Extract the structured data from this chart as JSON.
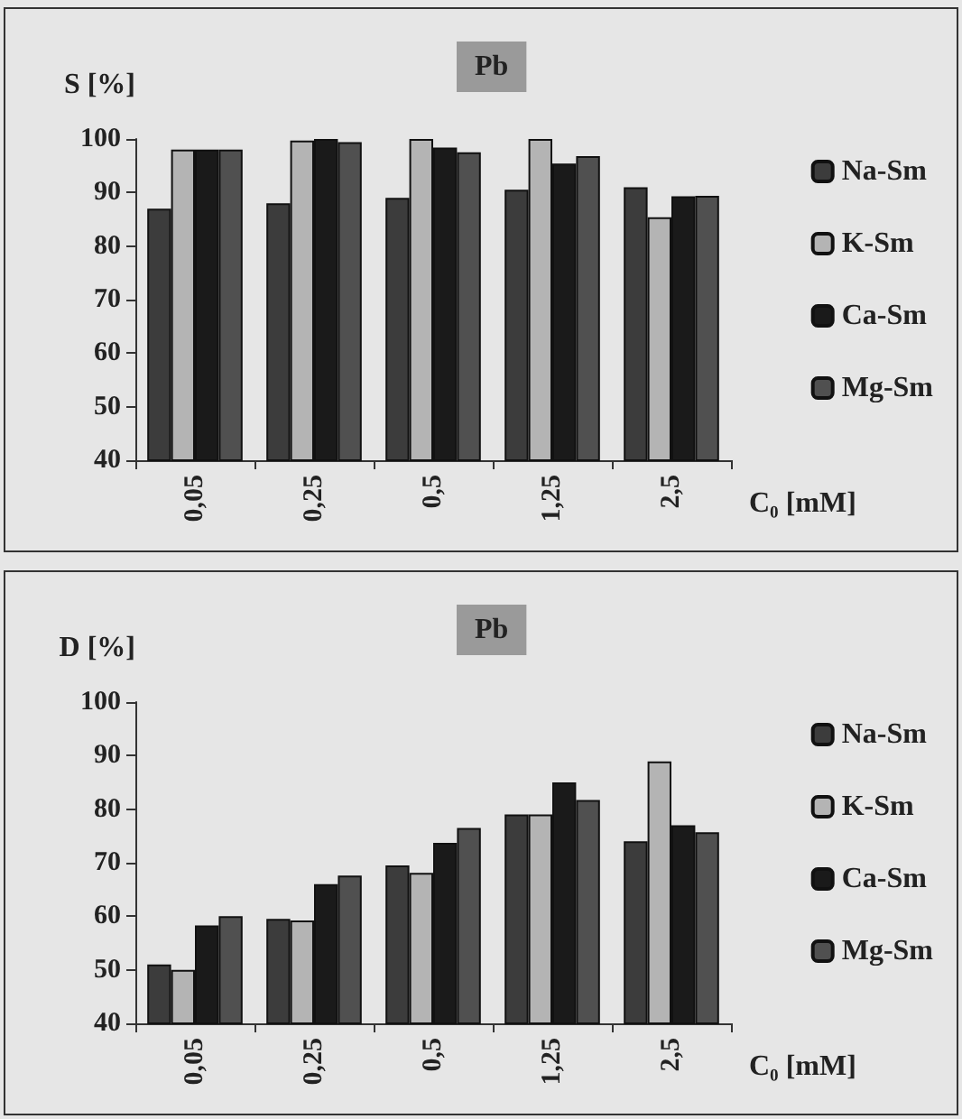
{
  "chart_data": [
    {
      "type": "bar",
      "title": "Pb",
      "ylabel": "S [%]",
      "xlabel": "C₀ [mM]",
      "categories": [
        "0,05",
        "0,25",
        "0,5",
        "1,25",
        "2,5"
      ],
      "ylim": [
        40,
        100
      ],
      "yticks": [
        40,
        50,
        60,
        70,
        80,
        90,
        100
      ],
      "grid": false,
      "legend": "right",
      "series": [
        {
          "name": "Na-Sm",
          "color": "#3c3c3c",
          "values": [
            87,
            88,
            89,
            90.5,
            91
          ]
        },
        {
          "name": "K-Sm",
          "color": "#b4b4b4",
          "values": [
            98,
            99.7,
            100,
            100,
            85.4
          ]
        },
        {
          "name": "Ca-Sm",
          "color": "#1a1a1a",
          "values": [
            98,
            100,
            98.4,
            95.4,
            89.3
          ]
        },
        {
          "name": "Mg-Sm",
          "color": "#505050",
          "values": [
            98,
            99.4,
            97.5,
            96.8,
            89.4
          ]
        }
      ]
    },
    {
      "type": "bar",
      "title": "Pb",
      "ylabel": "D [%]",
      "xlabel": "C₀ [mM]",
      "categories": [
        "0,05",
        "0,25",
        "0,5",
        "1,25",
        "2,5"
      ],
      "ylim": [
        40,
        100
      ],
      "yticks": [
        40,
        50,
        60,
        70,
        80,
        90,
        100
      ],
      "grid": false,
      "legend": "right",
      "series": [
        {
          "name": "Na-Sm",
          "color": "#3c3c3c",
          "values": [
            51,
            59.5,
            69.5,
            79,
            74
          ]
        },
        {
          "name": "K-Sm",
          "color": "#b4b4b4",
          "values": [
            50,
            59.2,
            68.1,
            79,
            88.9
          ]
        },
        {
          "name": "Ca-Sm",
          "color": "#1a1a1a",
          "values": [
            58.3,
            66,
            73.7,
            85,
            77
          ]
        },
        {
          "name": "Mg-Sm",
          "color": "#505050",
          "values": [
            60,
            67.6,
            76.5,
            81.7,
            75.7
          ]
        }
      ]
    }
  ]
}
